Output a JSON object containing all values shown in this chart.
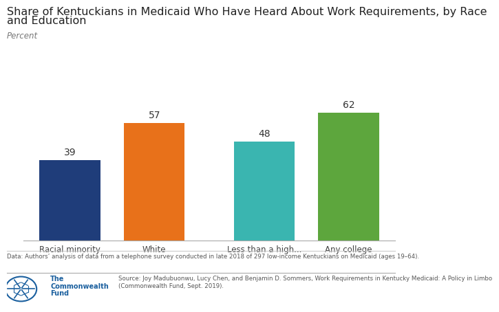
{
  "title_line1": "Share of Kentuckians in Medicaid Who Have Heard About Work Requirements, by Race",
  "title_line2": "and Education",
  "ylabel": "Percent",
  "categories": [
    "Racial minority",
    "White",
    "Less than a high...",
    "Any college"
  ],
  "values": [
    39,
    57,
    48,
    62
  ],
  "bar_colors": [
    "#1f3d7a",
    "#e8711a",
    "#3ab5b0",
    "#5da63d"
  ],
  "value_labels": [
    "39",
    "57",
    "48",
    "62"
  ],
  "ylim": [
    0,
    75
  ],
  "background_color": "#ffffff",
  "title_fontsize": 11.5,
  "ylabel_fontsize": 8.5,
  "tick_fontsize": 8.5,
  "value_fontsize": 10,
  "data_note": "Data: Authors’ analysis of data from a telephone survey conducted in late 2018 of 297 low-income Kentuckians on Medicaid (ages 19–64).",
  "source_line1": "Source: Joy Madubuonwu, Lucy Chen, and Benjamin D. Sommers, Work Requirements in Kentucky Medicaid: A Policy in Limbo",
  "source_line2": "(Commonwealth Fund, Sept. 2019).",
  "footer_org_line1": "The",
  "footer_org_line2": "Commonwealth",
  "footer_org_line3": "Fund",
  "logo_color": "#1a5f9e",
  "footer_text_color": "#1a5f9e",
  "note_color": "#555555",
  "bar_positions": [
    0,
    1,
    2.3,
    3.3
  ],
  "bar_width": 0.72,
  "xlim_left": -0.55,
  "xlim_right": 3.85
}
